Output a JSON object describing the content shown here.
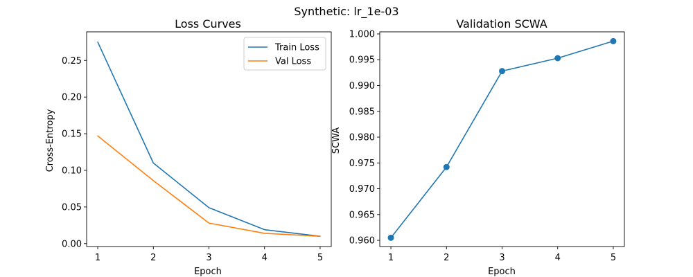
{
  "figure": {
    "suptitle": "Synthetic: lr_1e-03"
  },
  "chart_data": [
    {
      "type": "line",
      "title": "Loss Curves",
      "xlabel": "Epoch",
      "ylabel": "Cross-Entropy",
      "x": [
        1,
        2,
        3,
        4,
        5
      ],
      "xlim": [
        0.8,
        5.2
      ],
      "ylim": [
        -0.004,
        0.289
      ],
      "xticks": [
        1,
        2,
        3,
        4,
        5
      ],
      "yticks": [
        0.0,
        0.05,
        0.1,
        0.15,
        0.2,
        0.25
      ],
      "ytick_labels": [
        "0.00",
        "0.05",
        "0.10",
        "0.15",
        "0.20",
        "0.25"
      ],
      "grid": false,
      "legend": "top-right",
      "series": [
        {
          "name": "Train Loss",
          "color": "#1f77b4",
          "values": [
            0.275,
            0.11,
            0.049,
            0.019,
            0.01
          ]
        },
        {
          "name": "Val Loss",
          "color": "#ff7f0e",
          "values": [
            0.147,
            0.086,
            0.028,
            0.014,
            0.01
          ]
        }
      ]
    },
    {
      "type": "line",
      "title": "Validation SCWA",
      "xlabel": "Epoch",
      "ylabel": "SCWA",
      "x": [
        1,
        2,
        3,
        4,
        5
      ],
      "xlim": [
        0.8,
        5.2
      ],
      "ylim": [
        0.9588,
        1.0004
      ],
      "xticks": [
        1,
        2,
        3,
        4,
        5
      ],
      "yticks": [
        0.96,
        0.965,
        0.97,
        0.975,
        0.98,
        0.985,
        0.99,
        0.995,
        1.0
      ],
      "ytick_labels": [
        "0.960",
        "0.965",
        "0.970",
        "0.975",
        "0.980",
        "0.985",
        "0.990",
        "0.995",
        "1.000"
      ],
      "grid": false,
      "markers": true,
      "series": [
        {
          "color": "#1f77b4",
          "values": [
            0.9605,
            0.9742,
            0.9928,
            0.9953,
            0.9986
          ]
        }
      ]
    }
  ]
}
